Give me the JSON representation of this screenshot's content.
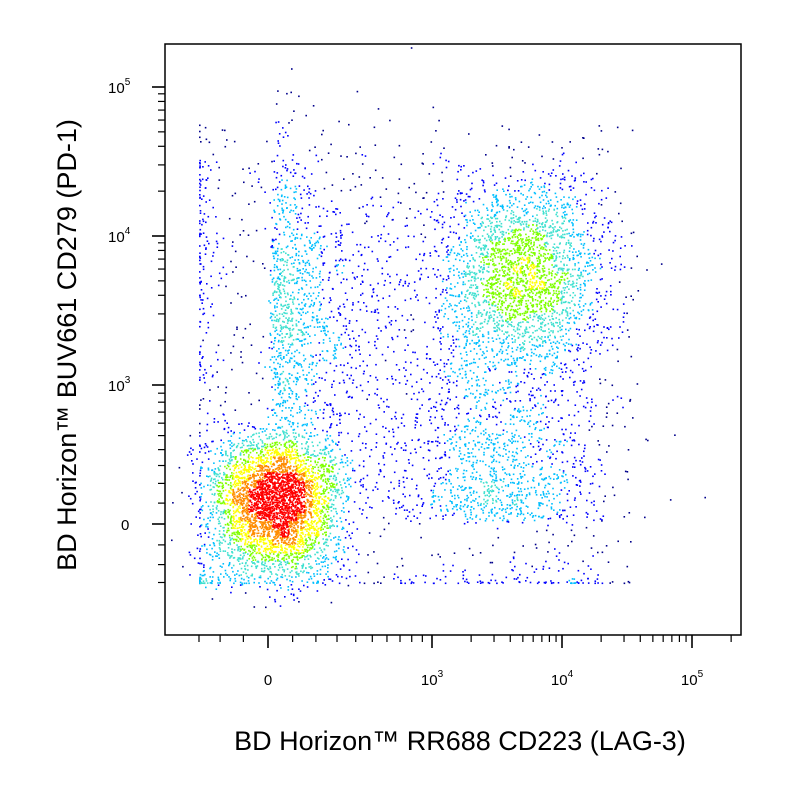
{
  "chart_data": {
    "type": "scatter",
    "subtype": "flow-cytometry-pseudocolor-density",
    "xlabel": "BD Horizon™ RR688 CD223 (LAG-3)",
    "ylabel": "BD Horizon™ BUV661 CD279 (PD-1)",
    "x_scale": "biexponential",
    "y_scale": "biexponential",
    "xlim": [
      -400,
      262144
    ],
    "ylim": [
      -400,
      262144
    ],
    "x_ticks": [
      {
        "value": 0,
        "base": "0",
        "exp": ""
      },
      {
        "value": 1000,
        "base": "10",
        "exp": "3"
      },
      {
        "value": 10000,
        "base": "10",
        "exp": "4"
      },
      {
        "value": 100000,
        "base": "10",
        "exp": "5"
      }
    ],
    "y_ticks": [
      {
        "value": 0,
        "base": "0",
        "exp": ""
      },
      {
        "value": 1000,
        "base": "10",
        "exp": "3"
      },
      {
        "value": 10000,
        "base": "10",
        "exp": "4"
      },
      {
        "value": 100000,
        "base": "10",
        "exp": "5"
      }
    ],
    "populations": [
      {
        "name": "",
        "center": [
          30,
          100
        ],
        "spread": [
          140,
          180
        ],
        "share": 0.45
      },
      {
        "name": "",
        "center": [
          5000,
          5500
        ],
        "spread": [
          0.28,
          0.3
        ],
        "share": 0.25
      },
      {
        "name": "",
        "center": [
          3000,
          400
        ],
        "spread": [
          0.45,
          0.55
        ],
        "share": 0.15
      },
      {
        "name": "",
        "center": [
          150,
          3000
        ],
        "spread": [
          0.5,
          0.55
        ],
        "share": 0.15
      }
    ],
    "event_count_drawn": 9000,
    "color_scale": [
      "#00008b",
      "#0000ff",
      "#00bfff",
      "#40e0d0",
      "#7fff00",
      "#ffff00",
      "#ff8c00",
      "#ff0000"
    ],
    "grid": false,
    "legend": "none"
  }
}
